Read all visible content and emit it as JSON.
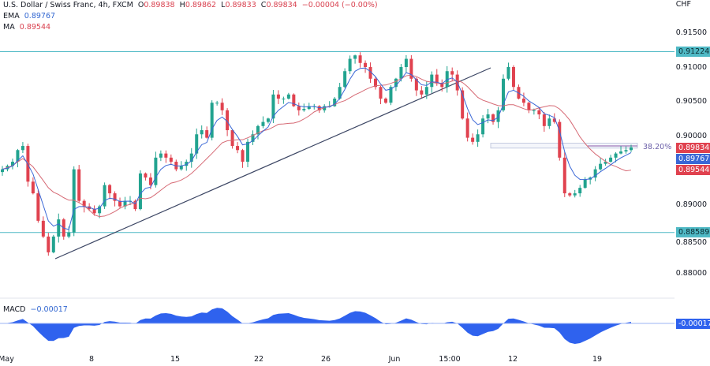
{
  "header": {
    "symbol": "U.S. Dollar / Swiss Franc, 4h, FXCM",
    "open_label": "O",
    "open": "0.89838",
    "high_label": "H",
    "high": "0.89862",
    "low_label": "L",
    "low": "0.89833",
    "close_label": "C",
    "close": "0.89834",
    "change": "−0.00004 (−0.00%)",
    "ema_label": "EMA",
    "ema_value": "0.89767",
    "ma_label": "MA",
    "ma_value": "0.89544"
  },
  "macd": {
    "label": "MACD",
    "value": "−0.00017",
    "tag": "-0.00017"
  },
  "colors": {
    "up": "#22a38f",
    "down": "#e0424f",
    "ema": "#3a67d6",
    "ma": "#d66a75",
    "level": "#4fb9c5",
    "trend": "#3c4664",
    "macd": "#2f62ee"
  },
  "chart_data": {
    "type": "candlestick",
    "currency": "CHF",
    "timeframe": "4h",
    "y_ticks": [
      "0.91500",
      "0.91000",
      "0.90500",
      "0.90000",
      "0.89000",
      "0.88500",
      "0.88000"
    ],
    "ylim": [
      0.8778,
      0.92
    ],
    "x_ticks": [
      "May",
      "8",
      "15",
      "22",
      "26",
      "Jun",
      "15:00",
      "12",
      "19"
    ],
    "closes": [
      0.8951,
      0.8956,
      0.8962,
      0.8979,
      0.8985,
      0.8933,
      0.8916,
      0.8876,
      0.8853,
      0.883,
      0.8853,
      0.8878,
      0.8853,
      0.8859,
      0.8951,
      0.8905,
      0.8897,
      0.8893,
      0.8887,
      0.8897,
      0.8928,
      0.8916,
      0.8905,
      0.8897,
      0.8905,
      0.8905,
      0.8893,
      0.8945,
      0.8939,
      0.8928,
      0.8968,
      0.8974,
      0.8968,
      0.8962,
      0.8951,
      0.8956,
      0.8962,
      0.8974,
      0.9002,
      0.9008,
      0.8997,
      0.9048,
      0.9048,
      0.9037,
      0.9008,
      0.8985,
      0.8979,
      0.8962,
      0.8991,
      0.9002,
      0.9014,
      0.902,
      0.9025,
      0.906,
      0.9054,
      0.9054,
      0.906,
      0.9043,
      0.9037,
      0.9039,
      0.9043,
      0.9043,
      0.9037,
      0.9043,
      0.9043,
      0.9054,
      0.9071,
      0.9094,
      0.9112,
      0.9117,
      0.9106,
      0.91,
      0.9083,
      0.9071,
      0.9054,
      0.9048,
      0.9071,
      0.9083,
      0.91,
      0.9112,
      0.9083,
      0.9066,
      0.906,
      0.9071,
      0.9089,
      0.9077,
      0.9071,
      0.9094,
      0.9089,
      0.9066,
      0.9025,
      0.8997,
      0.8991,
      0.9002,
      0.9025,
      0.9031,
      0.902,
      0.9037,
      0.9083,
      0.91,
      0.9071,
      0.9054,
      0.9048,
      0.9037,
      0.9037,
      0.9031,
      0.9014,
      0.9025,
      0.902,
      0.8968,
      0.8916,
      0.8913,
      0.8916,
      0.8924,
      0.8936,
      0.8939,
      0.8951,
      0.8959,
      0.8962,
      0.8968,
      0.8974,
      0.8977,
      0.8979,
      0.8983
    ],
    "horizontal_levels": [
      {
        "price": 0.91224,
        "label": "0.91224"
      },
      {
        "price": 0.88589,
        "label": "0.88589"
      }
    ],
    "fib_level": {
      "label": "38.20%",
      "price_top": 0.8989,
      "price_bottom": 0.8983
    },
    "last_price_tags": [
      {
        "value": "0.89834",
        "kind": "close"
      },
      {
        "value": "0.89767",
        "kind": "ema"
      },
      {
        "value": "0.89544",
        "kind": "ma"
      }
    ],
    "indicators": [
      "EMA",
      "MA",
      "MACD"
    ]
  }
}
